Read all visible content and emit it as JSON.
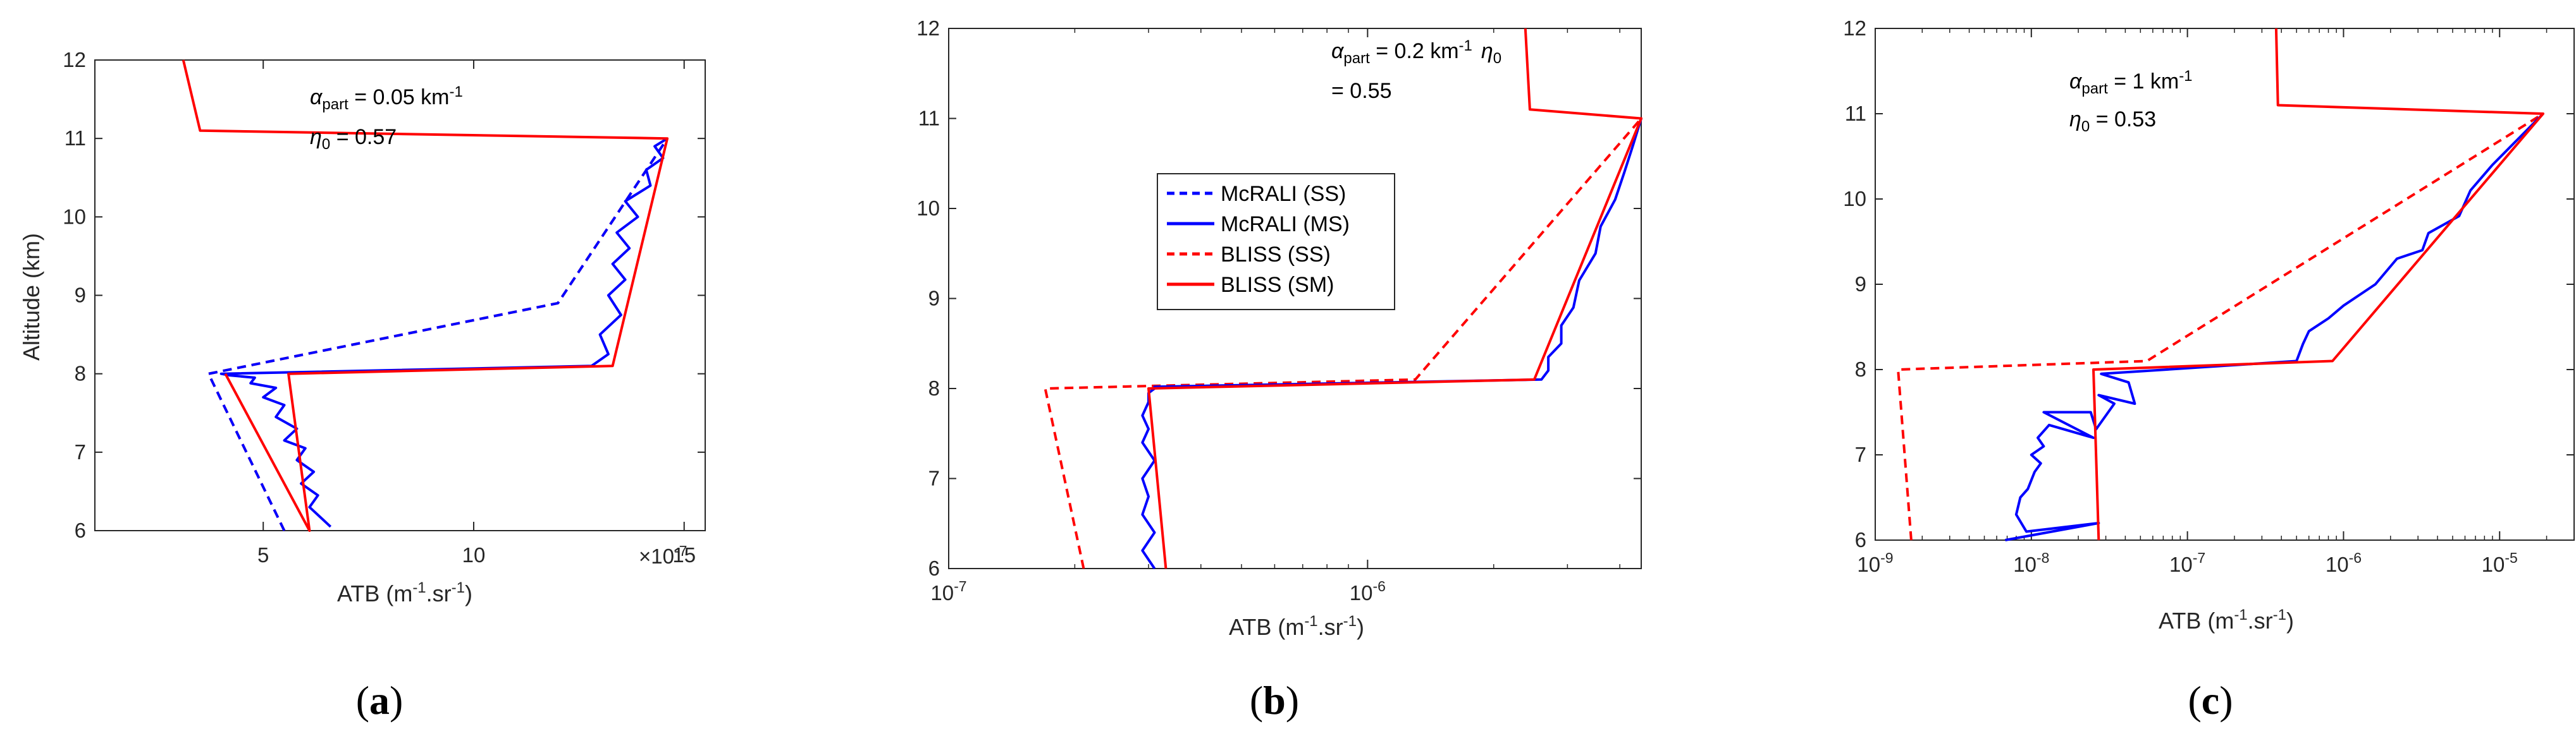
{
  "colors": {
    "blue": "#0000ff",
    "red": "#ff0000",
    "axis": "#262626"
  },
  "legend": [
    "McRALI (SS)",
    "McRALI (MS)",
    "BLISS (SS)",
    "BLISS (SM)"
  ],
  "chart_data": [
    {
      "type": "line",
      "panel": "a",
      "caption": "a",
      "xscale": "linear",
      "xlim": [
        1e-07,
        1.55e-06
      ],
      "ylim": [
        6,
        12
      ],
      "xticks": [
        {
          "v": 5e-07,
          "label": "5"
        },
        {
          "v": 1e-06,
          "label": "10"
        },
        {
          "v": 1.5e-06,
          "label": "15"
        }
      ],
      "yticks": [
        6,
        7,
        8,
        9,
        10,
        11,
        12
      ],
      "ylabel": "Altitude (km)",
      "xlabel_main": "ATB (m",
      "xlabel_sup1": "-1",
      "xlabel_mid": ".sr",
      "xlabel_sup2": "-1",
      "xlabel_end": ")",
      "multiplier_base": "×10",
      "multiplier_exp": "-7",
      "annotation": {
        "alpha": "α",
        "part": "part",
        "alpha_val": " = 0.05 km",
        "alpha_exp": "-1",
        "eta": "η",
        "eta_sub": "0",
        "eta_val": " = 0.57"
      },
      "series": [
        {
          "name": "BLISS (SS)",
          "style": "dashed",
          "color": "red",
          "x": [
            5.5e-07,
            3.7e-07,
            1.2e-06,
            1.46e-06
          ],
          "y": [
            6,
            8,
            8.9,
            11
          ]
        },
        {
          "name": "McRALI (SS)",
          "style": "dashed",
          "color": "blue",
          "x": [
            5.5e-07,
            3.7e-07,
            1.2e-06,
            1.46e-06
          ],
          "y": [
            6,
            8,
            8.9,
            11
          ]
        },
        {
          "name": "McRALI (MS)",
          "style": "solid",
          "color": "blue",
          "x": [
            6.6e-07,
            6.4e-07,
            6.1e-07,
            6.3e-07,
            5.9e-07,
            6.2e-07,
            5.8e-07,
            6e-07,
            5.5e-07,
            5.8e-07,
            5.3e-07,
            5.5e-07,
            5e-07,
            5.3e-07,
            4.7e-07,
            4.8e-07,
            4.2e-07,
            4e-07,
            1.28e-06,
            1.32e-06,
            1.3e-06,
            1.35e-06,
            1.32e-06,
            1.36e-06,
            1.33e-06,
            1.37e-06,
            1.34e-06,
            1.39e-06,
            1.36e-06,
            1.42e-06,
            1.41e-06,
            1.45e-06,
            1.43e-06,
            1.46e-06
          ],
          "y": [
            6.05,
            6.15,
            6.3,
            6.45,
            6.6,
            6.75,
            6.9,
            7.05,
            7.15,
            7.3,
            7.45,
            7.6,
            7.7,
            7.82,
            7.88,
            7.95,
            7.98,
            8.0,
            8.1,
            8.25,
            8.5,
            8.75,
            9.0,
            9.2,
            9.4,
            9.6,
            9.8,
            10.0,
            10.2,
            10.4,
            10.6,
            10.75,
            10.9,
            11.0
          ]
        },
        {
          "name": "BLISS (SM)",
          "style": "solid",
          "color": "red",
          "x": [
            3.1e-07,
            3.5e-07,
            1.46e-06,
            1.33e-06,
            5.6e-07,
            6.1e-07,
            4.1e-07
          ],
          "y": [
            12,
            11.1,
            11,
            8.1,
            8,
            6,
            8
          ]
        }
      ]
    },
    {
      "type": "line",
      "panel": "b",
      "caption": "b",
      "xscale": "log",
      "xlim": [
        1e-07,
        4.5e-06
      ],
      "ylim": [
        6,
        12
      ],
      "xticks": [
        {
          "v": 1e-07,
          "base": "10",
          "exp": "-7"
        },
        {
          "v": 1e-06,
          "base": "10",
          "exp": "-6"
        }
      ],
      "yticks": [
        6,
        7,
        8,
        9,
        10,
        11,
        12
      ],
      "xlabel_main": "ATB (m",
      "xlabel_sup1": "-1",
      "xlabel_mid": ".sr",
      "xlabel_sup2": "-1",
      "xlabel_end": ")",
      "annotation": {
        "alpha": "α",
        "part": "part",
        "alpha_val": " = 0.2 km",
        "alpha_exp": "-1",
        "eta": "η",
        "eta_sub": "0",
        "eta_val": "= 0.55"
      },
      "series": [
        {
          "name": "BLISS (SS)",
          "style": "dashed",
          "color": "red",
          "x": [
            2.1e-07,
            1.7e-07,
            1.3e-06,
            4.5e-06
          ],
          "y": [
            6,
            8,
            8.1,
            11
          ]
        },
        {
          "name": "McRALI (MS)",
          "style": "solid",
          "color": "blue",
          "x": [
            3.1e-07,
            2.9e-07,
            3.1e-07,
            2.9e-07,
            3e-07,
            2.9e-07,
            3.1e-07,
            2.9e-07,
            3e-07,
            2.9e-07,
            3e-07,
            3e-07,
            3.1e-07,
            3.1e-07,
            2.6e-06,
            2.7e-06,
            2.7e-06,
            2.9e-06,
            2.9e-06,
            3.1e-06,
            3.2e-06,
            3.5e-06,
            3.6e-06,
            3.9e-06,
            4.1e-06,
            4.3e-06,
            4.5e-06
          ],
          "y": [
            6.0,
            6.2,
            6.4,
            6.6,
            6.8,
            7.0,
            7.2,
            7.4,
            7.55,
            7.7,
            7.85,
            7.95,
            8.0,
            8.02,
            8.1,
            8.2,
            8.35,
            8.5,
            8.7,
            8.9,
            9.2,
            9.5,
            9.8,
            10.1,
            10.4,
            10.7,
            11.0
          ]
        },
        {
          "name": "BLISS (SM)",
          "style": "solid",
          "color": "red",
          "x": [
            2.38e-06,
            2.44e-06,
            4.5e-06,
            2.5e-06,
            3e-07,
            3.3e-07
          ],
          "y": [
            12,
            11.1,
            11,
            8.1,
            8,
            6
          ]
        }
      ]
    },
    {
      "type": "line",
      "panel": "c",
      "caption": "c",
      "xscale": "log",
      "xlim": [
        1e-09,
        3e-05
      ],
      "ylim": [
        6,
        12
      ],
      "xticks": [
        {
          "v": 1e-09,
          "base": "10",
          "exp": "-9"
        },
        {
          "v": 1e-08,
          "base": "10",
          "exp": "-8"
        },
        {
          "v": 1e-07,
          "base": "10",
          "exp": "-7"
        },
        {
          "v": 1e-06,
          "base": "10",
          "exp": "-6"
        },
        {
          "v": 1e-05,
          "base": "10",
          "exp": "-5"
        }
      ],
      "yticks": [
        6,
        7,
        8,
        9,
        10,
        11,
        12
      ],
      "xlabel_main": "ATB (m",
      "xlabel_sup1": "-1",
      "xlabel_mid": ".sr",
      "xlabel_sup2": "-1",
      "xlabel_end": ")",
      "annotation": {
        "alpha": "α",
        "part": "part",
        "alpha_val": " = 1 km",
        "alpha_exp": "-1",
        "eta": "η",
        "eta_sub": "0",
        "eta_val": " = 0.53"
      },
      "series": [
        {
          "name": "BLISS (SS)",
          "style": "dashed",
          "color": "red",
          "x": [
            1.7e-09,
            1.4e-09,
            5.5e-08,
            1.9e-05
          ],
          "y": [
            6,
            8,
            8.1,
            11
          ]
        },
        {
          "name": "McRALI (MS)",
          "style": "solid",
          "color": "blue",
          "x": [
            6.8e-09,
            2.7e-08,
            9.3e-09,
            8e-09,
            8.5e-09,
            9.5e-09,
            1.05e-08,
            1.15e-08,
            1e-08,
            1.2e-08,
            1.1e-08,
            1.3e-08,
            2.5e-08,
            1.2e-08,
            2.4e-08,
            2.6e-08,
            3.4e-08,
            2.7e-08,
            4.6e-08,
            4.2e-08,
            2.8e-08,
            5e-07,
            5.5e-07,
            6e-07,
            8e-07,
            1e-06,
            1.6e-06,
            2.2e-06,
            3.2e-06,
            3.5e-06,
            5.5e-06,
            6.5e-06,
            9e-06,
            1.9e-05
          ],
          "y": [
            6.0,
            6.2,
            6.1,
            6.3,
            6.5,
            6.6,
            6.8,
            6.9,
            7.0,
            7.1,
            7.2,
            7.35,
            7.2,
            7.5,
            7.5,
            7.3,
            7.6,
            7.7,
            7.6,
            7.85,
            7.95,
            8.1,
            8.3,
            8.45,
            8.6,
            8.75,
            9.0,
            9.3,
            9.4,
            9.6,
            9.8,
            10.1,
            10.4,
            11.0
          ]
        },
        {
          "name": "BLISS (SM)",
          "style": "solid",
          "color": "red",
          "x": [
            3.7e-07,
            3.8e-07,
            1.9e-05,
            8.5e-07,
            2.5e-08,
            2.7e-08
          ],
          "y": [
            12,
            11.1,
            11,
            8.1,
            8,
            6
          ]
        }
      ]
    }
  ]
}
